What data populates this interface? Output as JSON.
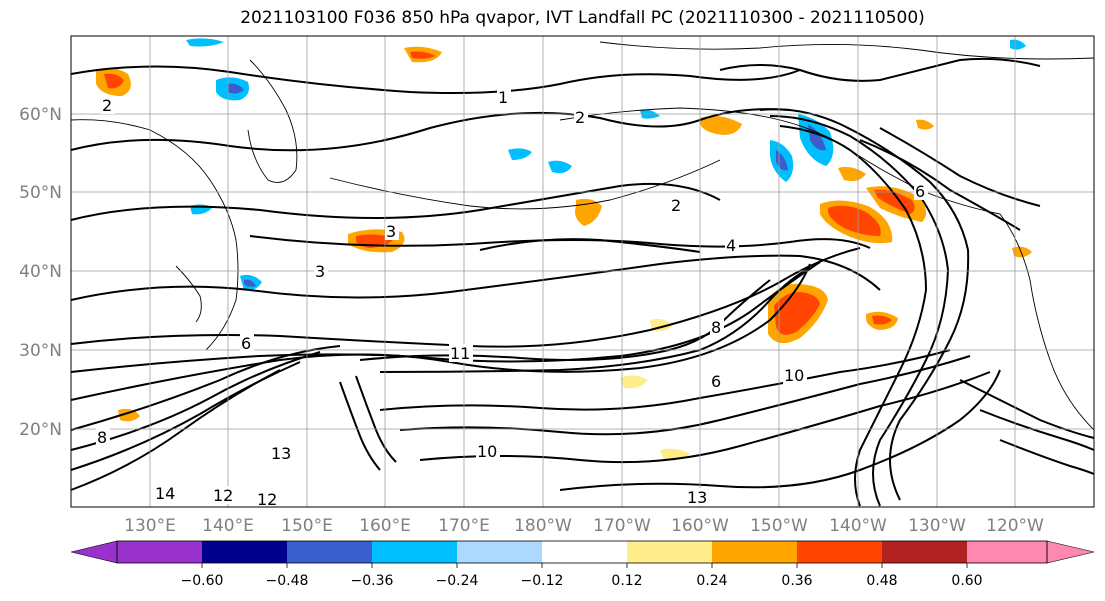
{
  "title": "2021103100 F036 850 hPa qvapor, IVT Landfall PC (2021110300 - 2021110500)",
  "map": {
    "lat_labels": [
      "60°N",
      "50°N",
      "40°N",
      "30°N",
      "20°N"
    ],
    "lon_labels": [
      "130°E",
      "140°E",
      "150°E",
      "160°E",
      "170°E",
      "180°W",
      "170°W",
      "160°W",
      "150°W",
      "140°W",
      "130°W",
      "120°W"
    ],
    "contour_labels": [
      "1",
      "2",
      "2",
      "2",
      "3",
      "3",
      "4",
      "6",
      "6",
      "6",
      "8",
      "8",
      "10",
      "10",
      "11",
      "12",
      "12",
      "13",
      "13",
      "14"
    ]
  },
  "colorbar": {
    "ticks": [
      "−0.60",
      "−0.48",
      "−0.36",
      "−0.24",
      "−0.12",
      "0.12",
      "0.24",
      "0.36",
      "0.48",
      "0.60"
    ],
    "colors": [
      "#9932cc",
      "#00008b",
      "#3a5fcd",
      "#00bfff",
      "#add8ff",
      "#ffffff",
      "#ffec8b",
      "#ffa500",
      "#ff4500",
      "#b22222",
      "#ff88b0"
    ]
  }
}
